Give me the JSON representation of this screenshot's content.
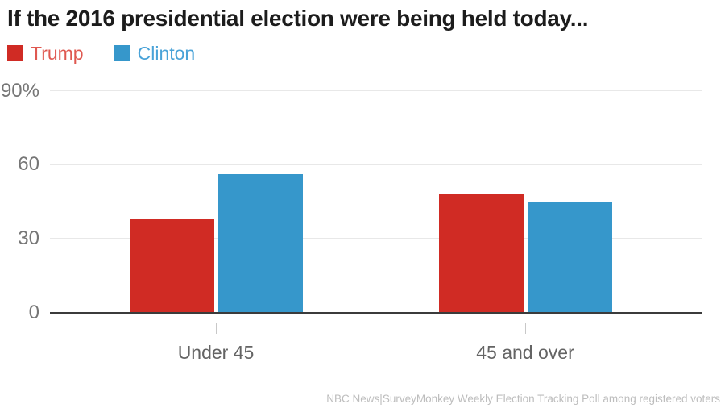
{
  "chart_data": {
    "type": "bar",
    "title": "If the 2016 presidential election were being held today...",
    "categories": [
      "Under 45",
      "45 and over"
    ],
    "series": [
      {
        "name": "Trump",
        "color": "#d02b24",
        "label_color": "#df5850",
        "values": [
          38,
          48
        ]
      },
      {
        "name": "Clinton",
        "color": "#3697cb",
        "label_color": "#4aa3d8",
        "values": [
          56,
          45
        ]
      }
    ],
    "ylim": [
      0,
      90
    ],
    "yticks": [
      {
        "value": 90,
        "label": "90%"
      },
      {
        "value": 60,
        "label": "60"
      },
      {
        "value": 30,
        "label": "30"
      },
      {
        "value": 0,
        "label": "0"
      }
    ],
    "grid": true,
    "legend_position": "top-left",
    "xlabel": "",
    "ylabel": ""
  },
  "source": "NBC News|SurveyMonkey Weekly Election Tracking Poll among registered voters"
}
